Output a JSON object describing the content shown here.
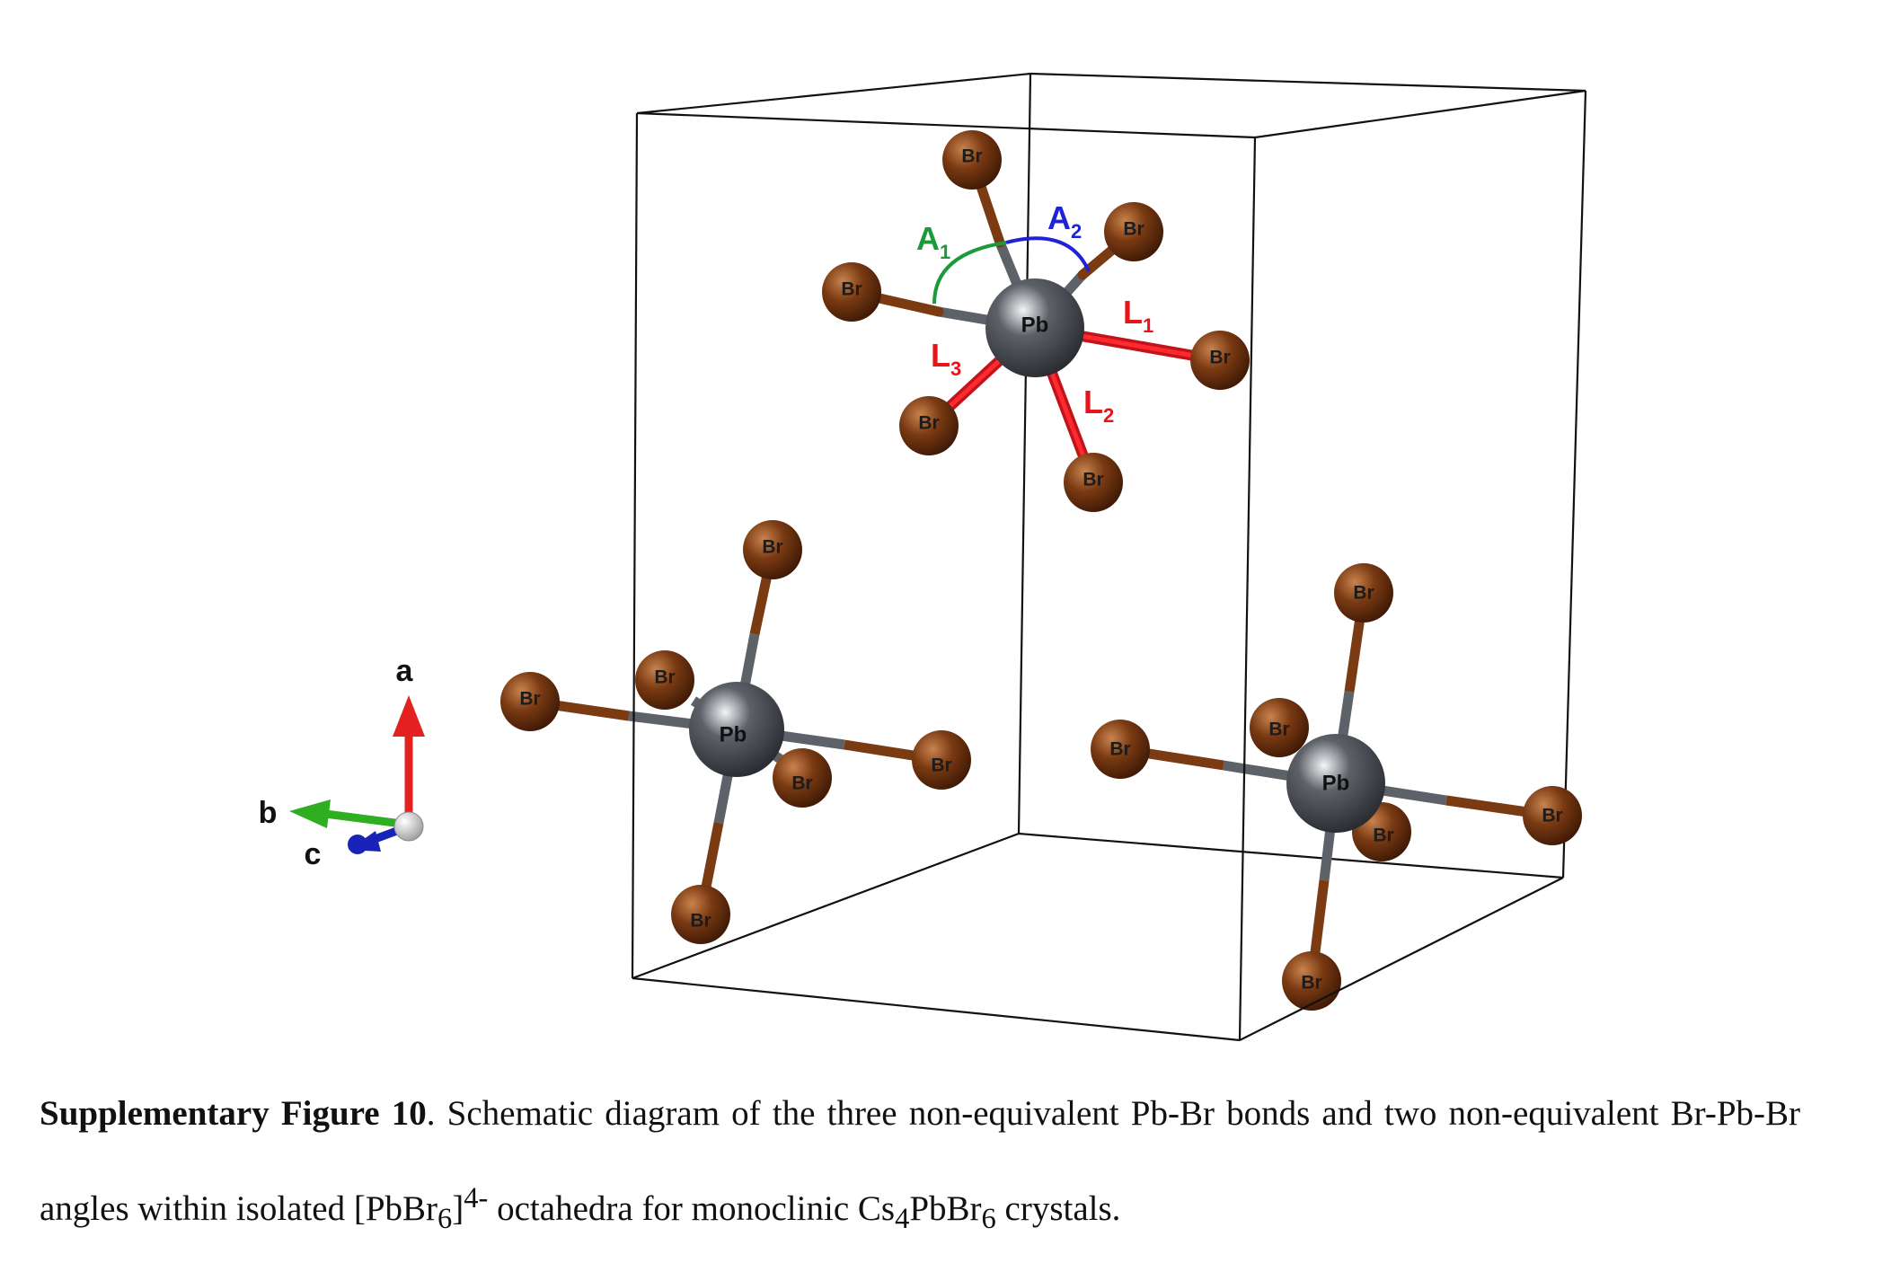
{
  "diagram": {
    "atoms": {
      "pb_label": "Pb",
      "br_label": "Br",
      "pb_color": "#5d6168",
      "br_color": "#7a3a12"
    },
    "bond_labels": {
      "L1": {
        "letter": "L",
        "sub": "1",
        "color": "#e8141b"
      },
      "L2": {
        "letter": "L",
        "sub": "2",
        "color": "#e8141b"
      },
      "L3": {
        "letter": "L",
        "sub": "3",
        "color": "#e8141b"
      }
    },
    "angle_labels": {
      "A1": {
        "letter": "A",
        "sub": "1",
        "color": "#1a9a3a"
      },
      "A2": {
        "letter": "A",
        "sub": "2",
        "color": "#1f23d6"
      }
    },
    "axes": {
      "a": "a",
      "b": "b",
      "c": "c",
      "a_color": "#e3221f",
      "b_color": "#2fae22",
      "c_color": "#1a23b8"
    },
    "cell_color": "#111111"
  },
  "caption": {
    "bold": "Supplementary Figure 10",
    "text_1": ". Schematic diagram of the three non-equivalent Pb-Br bonds and two non-equivalent Br-Pb-Br angles within isolated [PbBr",
    "sub_6a": "6",
    "text_2": "]",
    "sup": "4-",
    "text_3": " octahedra for monoclinic Cs",
    "sub_4": "4",
    "text_4": "PbBr",
    "sub_6b": "6",
    "text_5": " crystals."
  }
}
